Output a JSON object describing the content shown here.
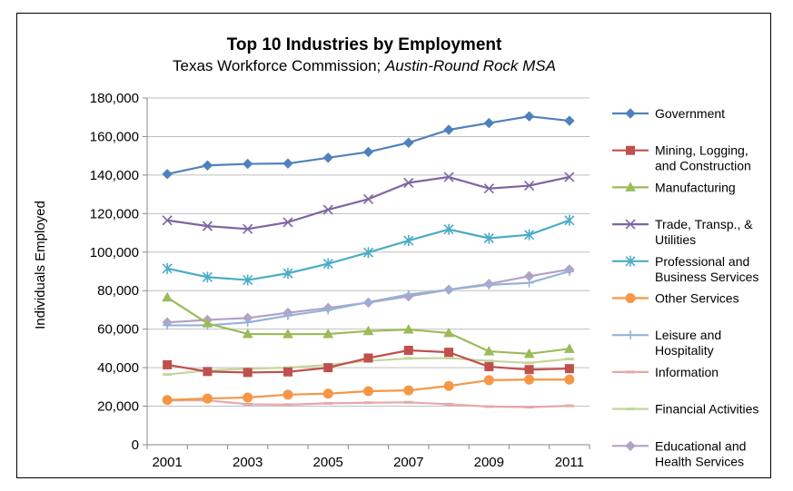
{
  "chart_data": {
    "type": "line",
    "title": "Top 10 Industries by Employment",
    "subtitle_prefix": "Texas Workforce Commission; ",
    "subtitle_italic": "Austin-Round Rock MSA",
    "xlabel": "",
    "ylabel": "Individuals Employed",
    "ylim": [
      0,
      180000
    ],
    "yticks": [
      "0",
      "20,000",
      "40,000",
      "60,000",
      "80,000",
      "100,000",
      "120,000",
      "140,000",
      "160,000",
      "180,000"
    ],
    "x": [
      2001,
      2002,
      2003,
      2004,
      2005,
      2006,
      2007,
      2008,
      2009,
      2010,
      2011
    ],
    "xtick_labels": [
      "2001",
      "2003",
      "2005",
      "2007",
      "2009",
      "2011"
    ],
    "grid": "horizontal",
    "legend_position": "right",
    "series": [
      {
        "name": "Government",
        "name_lines": [
          "Government"
        ],
        "color": "#4f81bd",
        "marker": "diamond",
        "values": [
          140500,
          145000,
          145800,
          146000,
          149000,
          152000,
          156800,
          163500,
          167000,
          170500,
          168200
        ]
      },
      {
        "name": "Mining, Logging, and Construction",
        "name_lines": [
          "Mining, Logging,",
          "and Construction"
        ],
        "color": "#c0504d",
        "marker": "square",
        "values": [
          41500,
          38000,
          37500,
          37800,
          40000,
          45000,
          49000,
          48000,
          40500,
          39000,
          39500
        ]
      },
      {
        "name": "Manufacturing",
        "name_lines": [
          "Manufacturing"
        ],
        "color": "#9bbb59",
        "marker": "triangle",
        "values": [
          76500,
          63000,
          57500,
          57400,
          57500,
          59000,
          59800,
          58000,
          48500,
          47200,
          49800
        ]
      },
      {
        "name": "Trade, Transp., & Utilities",
        "name_lines": [
          "Trade, Transp., &",
          "Utilities"
        ],
        "color": "#8064a2",
        "marker": "x",
        "values": [
          116500,
          113500,
          112000,
          115500,
          122000,
          127500,
          136000,
          139000,
          133000,
          134500,
          139000
        ]
      },
      {
        "name": "Professional and Business Services",
        "name_lines": [
          "Professional and",
          "Business Services"
        ],
        "color": "#4bacc6",
        "marker": "star",
        "values": [
          91500,
          87000,
          85500,
          89000,
          94000,
          99800,
          106000,
          111800,
          107200,
          109000,
          116500
        ]
      },
      {
        "name": "Other Services",
        "name_lines": [
          "Other Services"
        ],
        "color": "#f79646",
        "marker": "circle",
        "values": [
          23200,
          24000,
          24500,
          26000,
          26500,
          27800,
          28200,
          30500,
          33500,
          33800,
          33800
        ]
      },
      {
        "name": "Leisure and Hospitality",
        "name_lines": [
          "Leisure and",
          "Hospitality"
        ],
        "color": "#95b3d7",
        "marker": "plus",
        "values": [
          62000,
          62000,
          63500,
          67000,
          70000,
          74000,
          78000,
          80500,
          83000,
          84000,
          90000
        ]
      },
      {
        "name": "Information",
        "name_lines": [
          "Information"
        ],
        "color": "#e6a9a8",
        "marker": "dash",
        "values": [
          23000,
          23000,
          21000,
          20800,
          21500,
          21800,
          22000,
          21000,
          19800,
          19500,
          20200
        ]
      },
      {
        "name": "Financial Activities",
        "name_lines": [
          "Financial Activities"
        ],
        "color": "#c3d69b",
        "marker": "dash",
        "values": [
          36500,
          38500,
          39500,
          40000,
          41500,
          43500,
          44800,
          45000,
          43500,
          42500,
          44500
        ]
      },
      {
        "name": "Educational and Health Services",
        "name_lines": [
          "Educational and",
          "Health Services"
        ],
        "color": "#b3a2c7",
        "marker": "diamond",
        "values": [
          63500,
          64800,
          65800,
          68500,
          71000,
          73800,
          77000,
          80500,
          83500,
          87500,
          91000
        ]
      }
    ]
  }
}
